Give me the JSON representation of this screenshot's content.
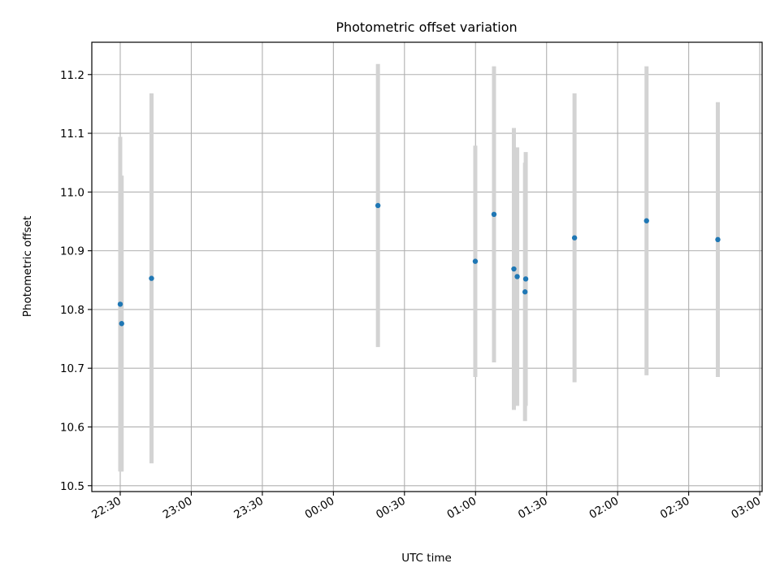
{
  "chart_data": {
    "type": "scatter",
    "title": "Photometric offset variation",
    "xlabel": "UTC time",
    "ylabel": "Photometric offset",
    "xlim_minutes": [
      1338,
      1621
    ],
    "xticks": [
      {
        "label": "22:30",
        "m": 1350
      },
      {
        "label": "23:00",
        "m": 1380
      },
      {
        "label": "23:30",
        "m": 1410
      },
      {
        "label": "00:00",
        "m": 1440
      },
      {
        "label": "00:30",
        "m": 1470
      },
      {
        "label": "01:00",
        "m": 1500
      },
      {
        "label": "01:30",
        "m": 1530
      },
      {
        "label": "02:00",
        "m": 1560
      },
      {
        "label": "02:30",
        "m": 1590
      },
      {
        "label": "03:00",
        "m": 1620
      }
    ],
    "ylim": [
      10.49,
      11.255
    ],
    "yticks": [
      10.5,
      10.6,
      10.7,
      10.8,
      10.9,
      11.0,
      11.1,
      11.2
    ],
    "grid": true,
    "colors": {
      "point": "#1f77b4",
      "errorbar": "#d3d3d3",
      "grid": "#b0b0b0"
    },
    "points": [
      {
        "m": 1350.0,
        "y": 10.809,
        "err": 0.285
      },
      {
        "m": 1350.6,
        "y": 10.776,
        "err": 0.252
      },
      {
        "m": 1363.2,
        "y": 10.853,
        "err": 0.315
      },
      {
        "m": 1458.8,
        "y": 10.977,
        "err": 0.241
      },
      {
        "m": 1499.9,
        "y": 10.882,
        "err": 0.197
      },
      {
        "m": 1507.8,
        "y": 10.962,
        "err": 0.252
      },
      {
        "m": 1516.2,
        "y": 10.869,
        "err": 0.24
      },
      {
        "m": 1517.6,
        "y": 10.856,
        "err": 0.22
      },
      {
        "m": 1520.9,
        "y": 10.83,
        "err": 0.22
      },
      {
        "m": 1521.2,
        "y": 10.852,
        "err": 0.216
      },
      {
        "m": 1541.8,
        "y": 10.922,
        "err": 0.246
      },
      {
        "m": 1572.2,
        "y": 10.951,
        "err": 0.263
      },
      {
        "m": 1602.3,
        "y": 10.919,
        "err": 0.234
      }
    ]
  }
}
